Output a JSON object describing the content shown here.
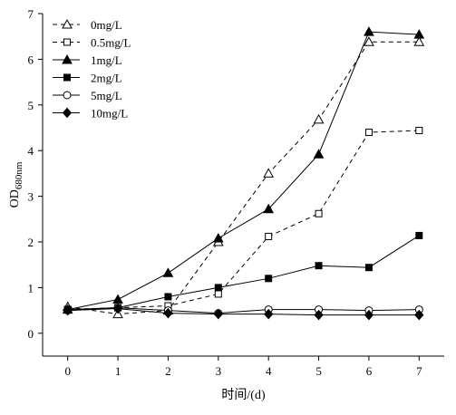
{
  "chart_data": {
    "type": "line",
    "xlabel": "时间/(d)",
    "ylabel": "OD",
    "ylabel_sub": "680nm",
    "xlim": [
      -0.5,
      7.5
    ],
    "ylim": [
      -0.5,
      7
    ],
    "x_ticks": [
      0,
      1,
      2,
      3,
      4,
      5,
      6,
      7
    ],
    "y_ticks": [
      0,
      1,
      2,
      3,
      4,
      5,
      6,
      7
    ],
    "grid": false,
    "legend_position": "top-left",
    "x": [
      0,
      1,
      2,
      3,
      4,
      5,
      6,
      7
    ],
    "series": [
      {
        "name": "0mg/L",
        "line": "dashed",
        "marker": "triangle",
        "fill": "open",
        "values": [
          0.58,
          0.42,
          0.5,
          2.0,
          3.5,
          4.68,
          6.38,
          6.38
        ]
      },
      {
        "name": "0.5mg/L",
        "line": "dashed",
        "marker": "square",
        "fill": "open",
        "values": [
          0.52,
          0.56,
          0.6,
          0.86,
          2.12,
          2.62,
          4.4,
          4.44
        ]
      },
      {
        "name": "1mg/L",
        "line": "solid",
        "marker": "triangle",
        "fill": "filled",
        "values": [
          0.52,
          0.74,
          1.32,
          2.08,
          2.72,
          3.92,
          6.6,
          6.54
        ]
      },
      {
        "name": "2mg/L",
        "line": "solid",
        "marker": "square",
        "fill": "filled",
        "values": [
          0.52,
          0.56,
          0.8,
          1.0,
          1.2,
          1.48,
          1.44,
          2.14
        ]
      },
      {
        "name": "5mg/L",
        "line": "solid",
        "marker": "circle",
        "fill": "open",
        "values": [
          0.5,
          0.56,
          0.5,
          0.44,
          0.52,
          0.52,
          0.5,
          0.52
        ]
      },
      {
        "name": "10mg/L",
        "line": "solid",
        "marker": "diamond",
        "fill": "filled",
        "values": [
          0.5,
          0.54,
          0.44,
          0.42,
          0.42,
          0.4,
          0.4,
          0.4
        ]
      }
    ]
  }
}
